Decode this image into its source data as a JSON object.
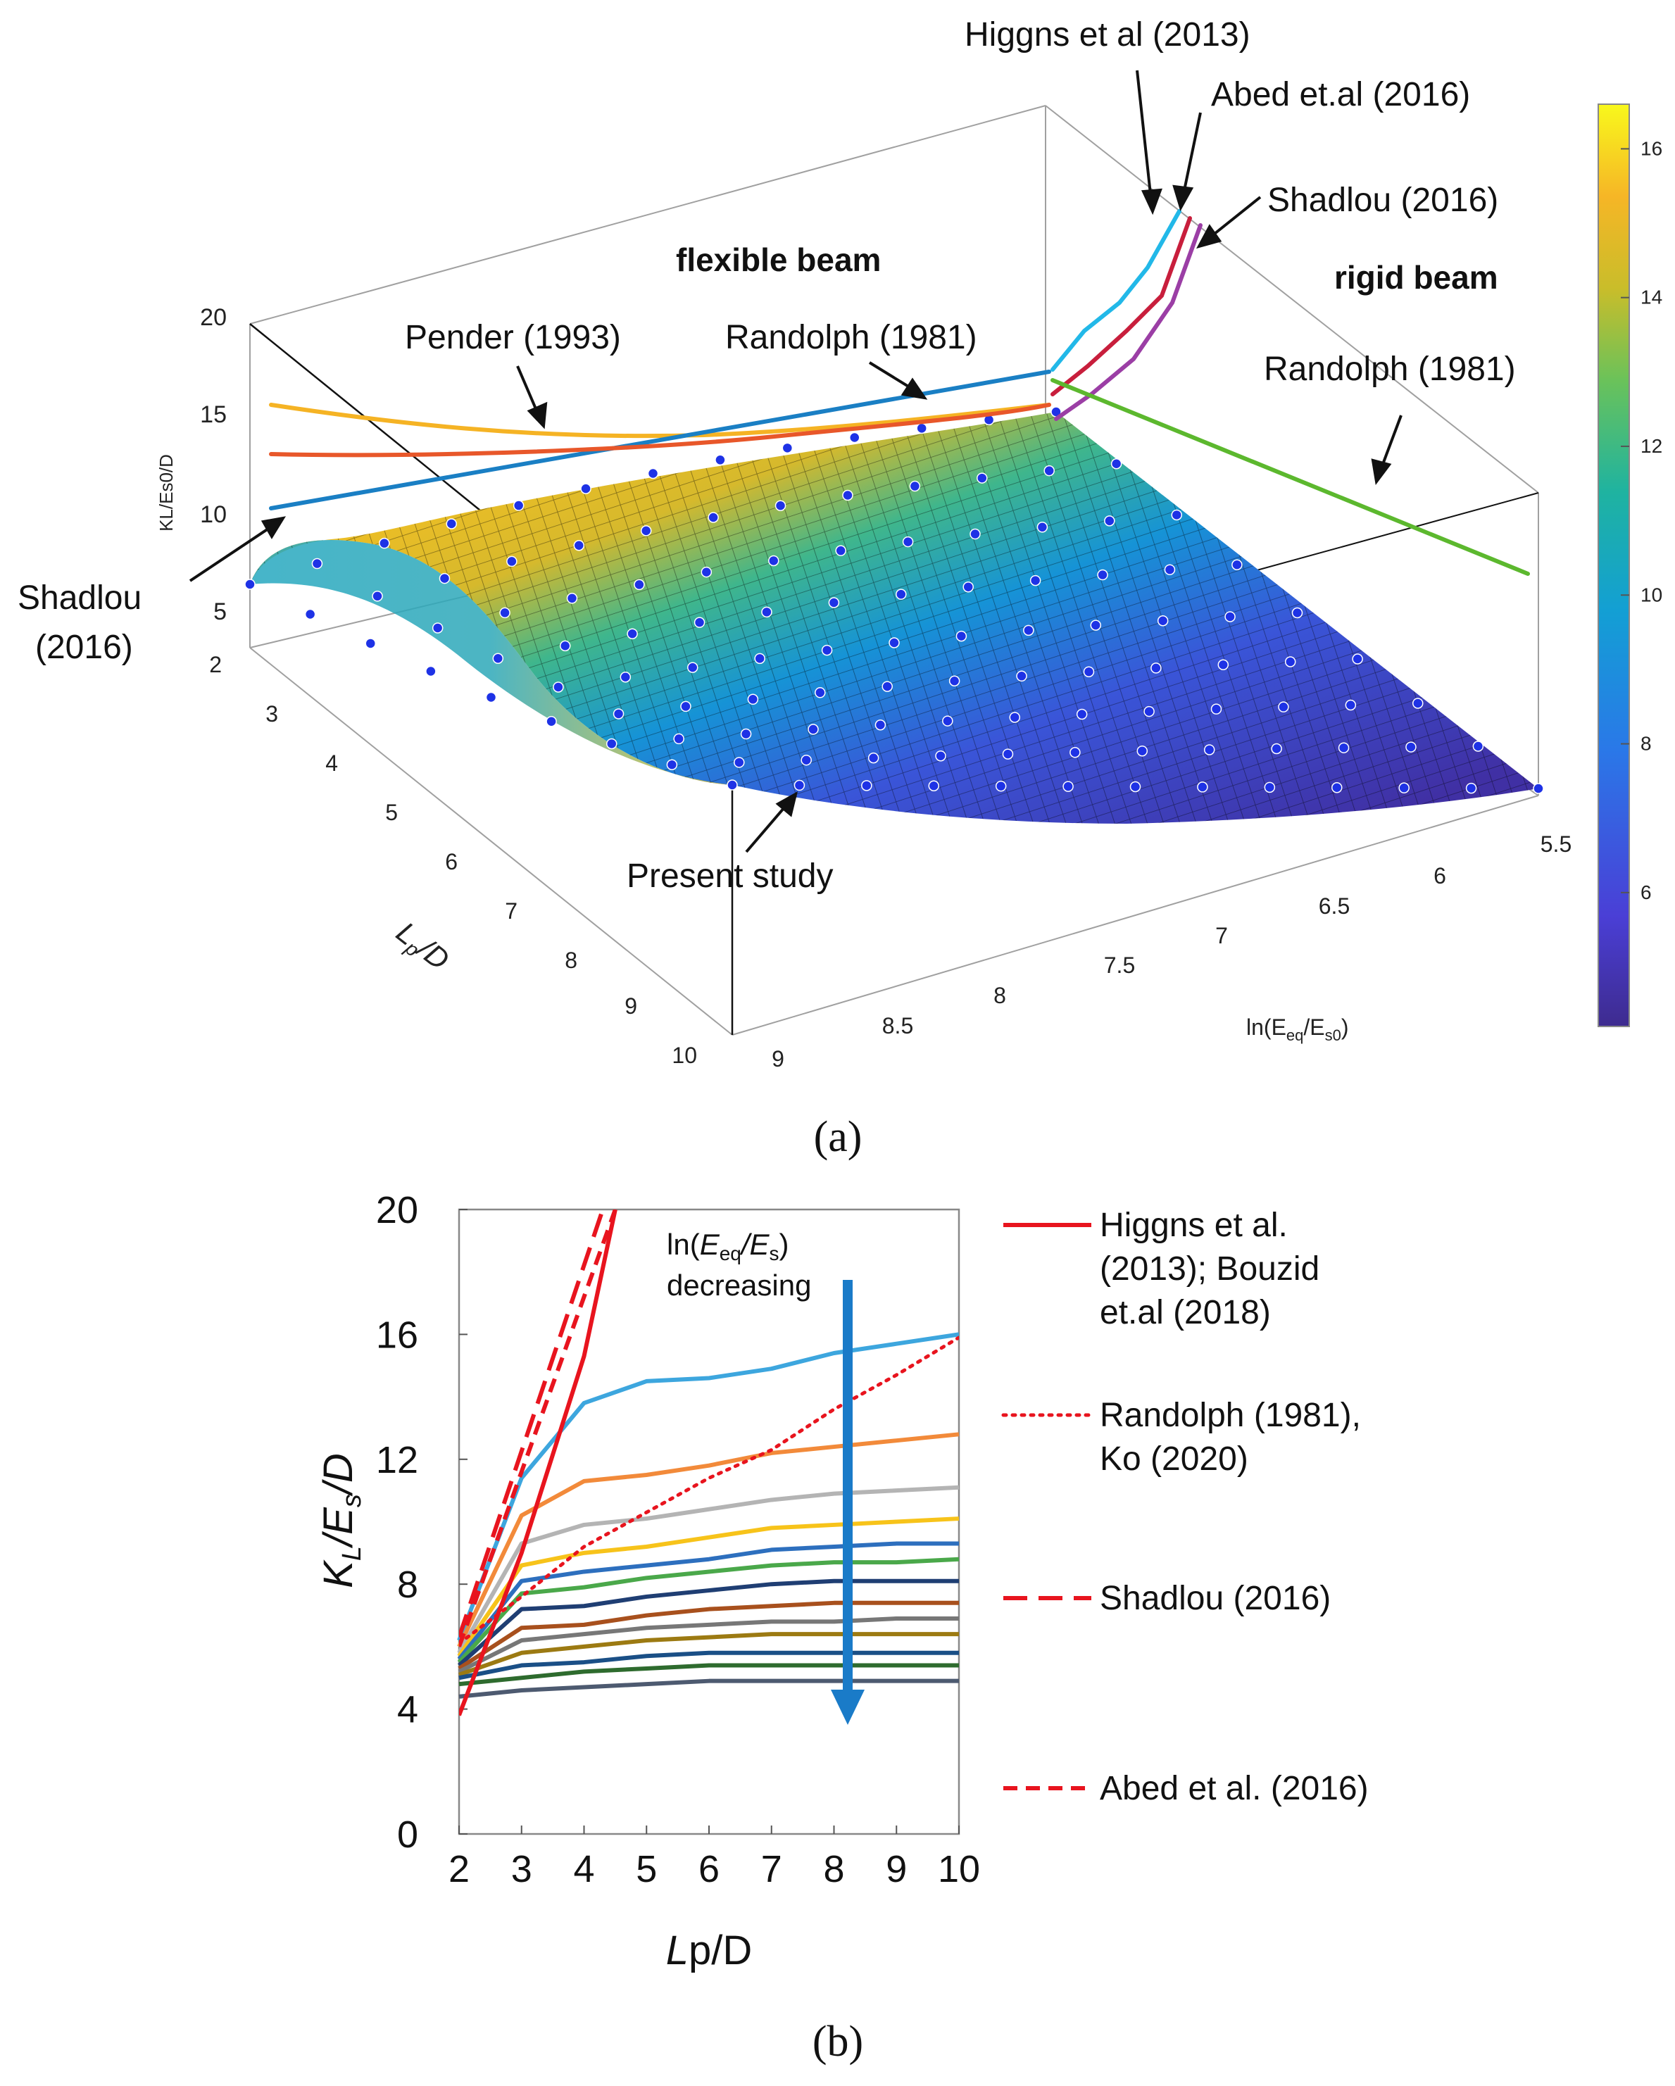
{
  "panel_labels": {
    "a": "(a)",
    "b": "(b)"
  },
  "chart_data": [
    {
      "type": "surface",
      "panel": "a",
      "zlabel": "KL/Es0/D",
      "ylabel": "Lp/D",
      "xlabel": "ln(Eeq/Es0)",
      "z_ticks": [
        "20",
        "15",
        "10",
        "5"
      ],
      "lp_ticks": [
        "2",
        "3",
        "4",
        "5",
        "6",
        "7",
        "8",
        "9",
        "10"
      ],
      "ln_ticks": [
        "5.5",
        "6",
        "6.5",
        "7",
        "7.5",
        "8",
        "8.5",
        "9"
      ],
      "colorbar": {
        "min": 4.2,
        "max": 16.6,
        "ticks": [
          "16",
          "14",
          "12",
          "10",
          "8",
          "6"
        ]
      },
      "region_labels": {
        "flexible": "flexible beam",
        "rigid": "rigid beam"
      },
      "annotations": {
        "higgns": "Higgns et al (2013)",
        "abed": "Abed et.al (2016)",
        "shadlou_right": "Shadlou (2016)",
        "pender": "Pender (1993)",
        "randolph_top": "Randolph (1981)",
        "randolph_right": "Randolph (1981)",
        "shadlou_left_1": "Shadlou",
        "shadlou_left_2": "(2016)",
        "present": "Present study"
      },
      "colors": {
        "pender": "#f5b324",
        "randolph": "#1a7fc4",
        "shadlou": "#e8572a",
        "higgns": "#22b8e8",
        "abed": "#c81e3c",
        "shadlou_rigid": "#9b3ea5",
        "randolph_rigid": "#5cb82e",
        "points": "#1e32e6"
      }
    },
    {
      "type": "line",
      "panel": "b",
      "xlabel": {
        "main": "L",
        "rest": "p/D"
      },
      "ylabel": {
        "k": "K",
        "ksub": "L",
        "slash1": "/E",
        "esub": "s",
        "tail": "/D"
      },
      "x_ticks": [
        2,
        3,
        4,
        5,
        6,
        7,
        8,
        9,
        10
      ],
      "y_ticks": [
        0,
        4,
        8,
        12,
        16,
        20
      ],
      "xlim": [
        2,
        10
      ],
      "ylim": [
        0,
        20
      ],
      "series": [
        {
          "name": "c1",
          "color": "#3da6de",
          "x": [
            2,
            3,
            4,
            5,
            6,
            7,
            8,
            9,
            10
          ],
          "values": [
            6.2,
            11.4,
            13.8,
            14.5,
            14.6,
            14.9,
            15.4,
            15.7,
            16.0
          ]
        },
        {
          "name": "c2",
          "color": "#f28a3a",
          "x": [
            2,
            3,
            4,
            5,
            6,
            7,
            8,
            9,
            10
          ],
          "values": [
            6.0,
            10.2,
            11.3,
            11.5,
            11.8,
            12.2,
            12.4,
            12.6,
            12.8
          ]
        },
        {
          "name": "c3",
          "color": "#b4b4b4",
          "x": [
            2,
            3,
            4,
            5,
            6,
            7,
            8,
            9,
            10
          ],
          "values": [
            5.8,
            9.3,
            9.9,
            10.1,
            10.4,
            10.7,
            10.9,
            11.0,
            11.1
          ]
        },
        {
          "name": "c4",
          "color": "#f7c31a",
          "x": [
            2,
            3,
            4,
            5,
            6,
            7,
            8,
            9,
            10
          ],
          "values": [
            5.7,
            8.6,
            9.0,
            9.2,
            9.5,
            9.8,
            9.9,
            10.0,
            10.1
          ]
        },
        {
          "name": "c5",
          "color": "#2d6fbe",
          "x": [
            2,
            3,
            4,
            5,
            6,
            7,
            8,
            9,
            10
          ],
          "values": [
            5.6,
            8.1,
            8.4,
            8.6,
            8.8,
            9.1,
            9.2,
            9.3,
            9.3
          ]
        },
        {
          "name": "c6",
          "color": "#4aa84a",
          "x": [
            2,
            3,
            4,
            5,
            6,
            7,
            8,
            9,
            10
          ],
          "values": [
            5.5,
            7.7,
            7.9,
            8.2,
            8.4,
            8.6,
            8.7,
            8.7,
            8.8
          ]
        },
        {
          "name": "c7",
          "color": "#1f3e73",
          "x": [
            2,
            3,
            4,
            5,
            6,
            7,
            8,
            9,
            10
          ],
          "values": [
            5.4,
            7.2,
            7.3,
            7.6,
            7.8,
            8.0,
            8.1,
            8.1,
            8.1
          ]
        },
        {
          "name": "c8",
          "color": "#a8501d",
          "x": [
            2,
            3,
            4,
            5,
            6,
            7,
            8,
            9,
            10
          ],
          "values": [
            5.3,
            6.6,
            6.7,
            7.0,
            7.2,
            7.3,
            7.4,
            7.4,
            7.4
          ]
        },
        {
          "name": "c9",
          "color": "#777777",
          "x": [
            2,
            3,
            4,
            5,
            6,
            7,
            8,
            9,
            10
          ],
          "values": [
            5.2,
            6.2,
            6.4,
            6.6,
            6.7,
            6.8,
            6.8,
            6.9,
            6.9
          ]
        },
        {
          "name": "c10",
          "color": "#9c7a12",
          "x": [
            2,
            3,
            4,
            5,
            6,
            7,
            8,
            9,
            10
          ],
          "values": [
            5.1,
            5.8,
            6.0,
            6.2,
            6.3,
            6.4,
            6.4,
            6.4,
            6.4
          ]
        },
        {
          "name": "c11",
          "color": "#1a4f86",
          "x": [
            2,
            3,
            4,
            5,
            6,
            7,
            8,
            9,
            10
          ],
          "values": [
            5.0,
            5.4,
            5.5,
            5.7,
            5.8,
            5.8,
            5.8,
            5.8,
            5.8
          ]
        },
        {
          "name": "c12",
          "color": "#2e6b2e",
          "x": [
            2,
            3,
            4,
            5,
            6,
            7,
            8,
            9,
            10
          ],
          "values": [
            4.8,
            5.0,
            5.2,
            5.3,
            5.4,
            5.4,
            5.4,
            5.4,
            5.4
          ]
        },
        {
          "name": "c13",
          "color": "#4d5a70",
          "x": [
            2,
            3,
            4,
            5,
            6,
            7,
            8,
            9,
            10
          ],
          "values": [
            4.4,
            4.6,
            4.7,
            4.8,
            4.9,
            4.9,
            4.9,
            4.9,
            4.9
          ]
        }
      ],
      "reference_series": [
        {
          "name": "Higgns",
          "color": "#e8141e",
          "dash": "solid",
          "x": [
            2,
            3,
            4,
            4.5
          ],
          "values": [
            3.8,
            9.0,
            15.3,
            20.0
          ]
        },
        {
          "name": "Randolph",
          "color": "#e8141e",
          "dash": "dotted",
          "x": [
            2,
            3,
            4,
            5,
            6,
            7,
            8,
            9,
            10
          ],
          "values": [
            6.1,
            7.6,
            9.2,
            10.3,
            11.4,
            12.3,
            13.6,
            14.7,
            15.9
          ]
        },
        {
          "name": "Shadlou",
          "color": "#e8141e",
          "dash": "longdash",
          "x": [
            2,
            4.3
          ],
          "values": [
            6.3,
            20.0
          ]
        },
        {
          "name": "Abed",
          "color": "#e8141e",
          "dash": "dashed",
          "x": [
            2,
            4.5
          ],
          "values": [
            6.0,
            20.0
          ]
        }
      ],
      "arrow": {
        "color": "#1a7bc8",
        "label_ln": "ln(",
        "label_e": "E",
        "label_eq": "eq",
        "label_mid": "/E",
        "label_s": "s",
        "label_close": ")",
        "label_2": "decreasing"
      },
      "legend": [
        {
          "lines": [
            "Higgns et al.",
            "(2013);  Bouzid",
            "et.al (2018)"
          ],
          "dash": "solid"
        },
        {
          "lines": [
            "Randolph (1981),",
            "Ko (2020)"
          ],
          "dash": "dotted"
        },
        {
          "lines": [
            "Shadlou  (2016)"
          ],
          "dash": "longdash"
        },
        {
          "lines": [
            "Abed et al. (2016)"
          ],
          "dash": "dashed"
        }
      ]
    }
  ]
}
